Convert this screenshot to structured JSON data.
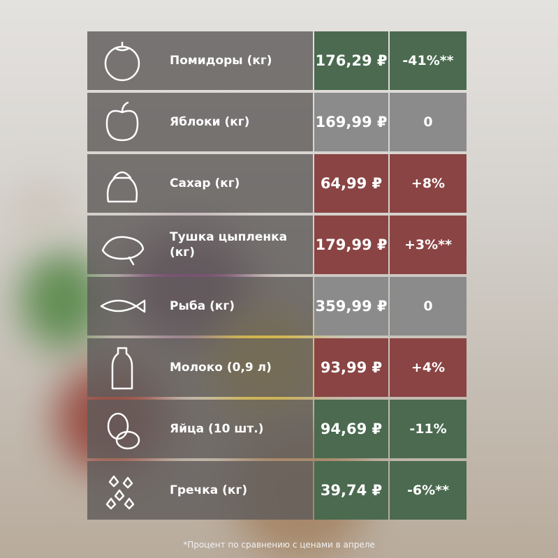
{
  "table": {
    "rows": [
      {
        "name": "Помидоры (кг)",
        "price": "176,29 ₽",
        "change": "-41%**",
        "color": "#4b6a50"
      },
      {
        "name": "Яблоки (кг)",
        "price": "169,99 ₽",
        "change": "0",
        "color": "#8b8b8b"
      },
      {
        "name": "Сахар (кг)",
        "price": "64,99 ₽",
        "change": "+8%",
        "color": "#8a4444"
      },
      {
        "name": "Тушка цыпленка (кг)",
        "price": "179,99 ₽",
        "change": "+3%**",
        "color": "#8a4444"
      },
      {
        "name": "Рыба (кг)",
        "price": "359,99 ₽",
        "change": "0",
        "color": "#8b8b8b"
      },
      {
        "name": "Молоко (0,9 л)",
        "price": "93,99 ₽",
        "change": "+4%",
        "color": "#8a4444"
      },
      {
        "name": "Яйца (10 шт.)",
        "price": "94,69 ₽",
        "change": "-11%",
        "color": "#4b6a50"
      },
      {
        "name": "Гречка (кг)",
        "price": "39,74 ₽",
        "change": "-6%**",
        "color": "#4b6a50"
      }
    ]
  },
  "footnote": "*Процент по сравнению с ценами в апреле"
}
